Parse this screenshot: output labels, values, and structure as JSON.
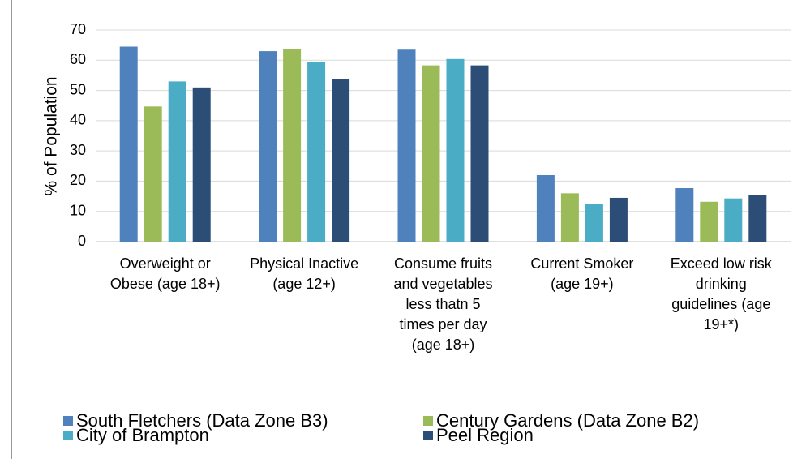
{
  "chart_data": {
    "type": "bar",
    "y_label": "% of Population",
    "categories": [
      "Overweight or Obese (age 18+)",
      "Physical Inactive (age 12+)",
      "Consume fruits and vegetables less thatn 5 times per day (age 18+)",
      "Current Smoker (age 19+)",
      "Exceed low risk drinking guidelines (age 19+*)"
    ],
    "series": [
      {
        "name": "South Fletchers (Data Zone B3)",
        "color": "#4f81bd",
        "values": [
          64.5,
          63,
          63.5,
          22,
          17.7
        ]
      },
      {
        "name": "Century Gardens (Data Zone B2)",
        "color": "#9bbb59",
        "values": [
          44.7,
          63.7,
          58.3,
          16,
          13.2
        ]
      },
      {
        "name": "City of Brampton",
        "color": "#4bacc6",
        "values": [
          53,
          59.4,
          60.4,
          12.6,
          14.3
        ]
      },
      {
        "name": "Peel Region",
        "color": "#2c4d75",
        "values": [
          51,
          53.7,
          58.3,
          14.5,
          15.5
        ]
      }
    ],
    "ylim": [
      0,
      70
    ],
    "yticks": [
      0,
      10,
      20,
      30,
      40,
      50,
      60,
      70
    ],
    "grid": true
  }
}
